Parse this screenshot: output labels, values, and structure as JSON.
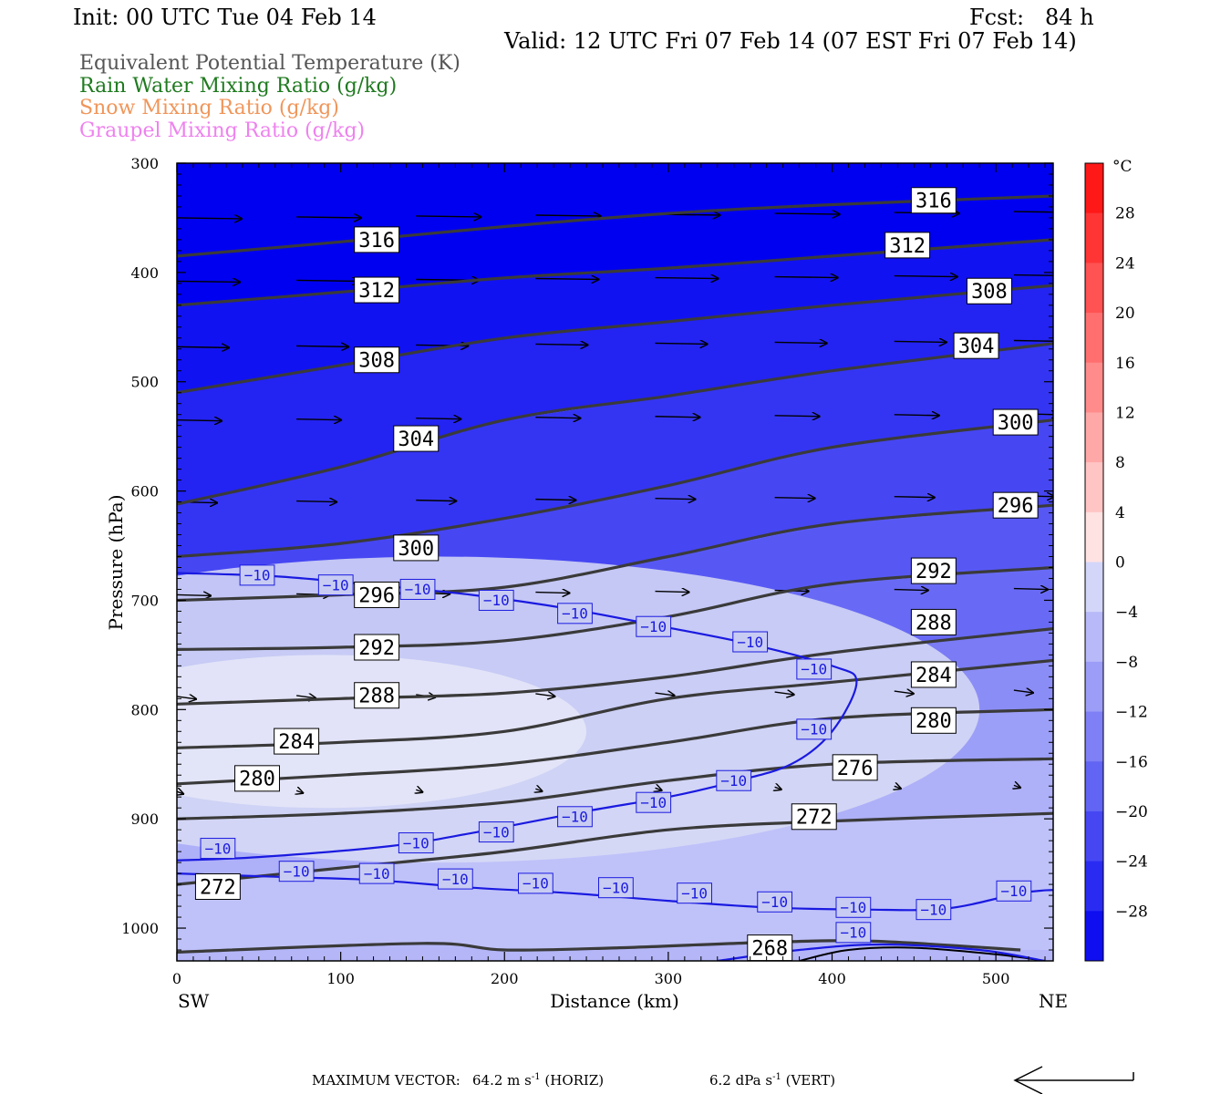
{
  "header": {
    "init": "Init: 00 UTC Tue 04 Feb 14",
    "fcst": "Fcst:   84 h",
    "valid": "Valid: 12 UTC Fri 07 Feb 14 (07 EST Fri 07 Feb 14)"
  },
  "legend": [
    {
      "text": "Equivalent Potential Temperature (K)",
      "color": "#555555"
    },
    {
      "text": "Rain Water Mixing Ratio (g/kg)",
      "color": "#1f7a1f"
    },
    {
      "text": "Snow Mixing Ratio (g/kg)",
      "color": "#f0965a"
    },
    {
      "text": "Graupel Mixing Ratio (g/kg)",
      "color": "#ee82ee"
    }
  ],
  "chart_data": {
    "type": "cross-section",
    "xlabel": "Distance (km)",
    "ylabel": "Pressure (hPa)",
    "x_ticks": [
      "0",
      "100",
      "200",
      "300",
      "400",
      "500"
    ],
    "y_ticks": [
      "300",
      "400",
      "500",
      "600",
      "700",
      "800",
      "900",
      "1000"
    ],
    "xlim": [
      0,
      535
    ],
    "ylim": [
      1030,
      300
    ],
    "x_end_labels": {
      "left": "SW",
      "right": "NE"
    },
    "colorbar": {
      "unit": "°C",
      "labels": [
        "28",
        "24",
        "20",
        "16",
        "12",
        "8",
        "4",
        "0",
        "−4",
        "−8",
        "−12",
        "−16",
        "−20",
        "−24",
        "−28"
      ],
      "range": [
        -32,
        32
      ]
    },
    "theta_e_contours": [
      {
        "label": "316",
        "points": [
          [
            0,
            385
          ],
          [
            100,
            372
          ],
          [
            200,
            358
          ],
          [
            300,
            346
          ],
          [
            400,
            338
          ],
          [
            535,
            330
          ]
        ]
      },
      {
        "label": "312",
        "points": [
          [
            0,
            430
          ],
          [
            100,
            418
          ],
          [
            200,
            405
          ],
          [
            300,
            396
          ],
          [
            400,
            385
          ],
          [
            535,
            370
          ]
        ]
      },
      {
        "label": "308",
        "points": [
          [
            0,
            510
          ],
          [
            100,
            485
          ],
          [
            200,
            460
          ],
          [
            300,
            445
          ],
          [
            400,
            430
          ],
          [
            535,
            412
          ]
        ]
      },
      {
        "label": "304",
        "points": [
          [
            0,
            612
          ],
          [
            100,
            578
          ],
          [
            200,
            535
          ],
          [
            300,
            513
          ],
          [
            400,
            490
          ],
          [
            535,
            465
          ]
        ]
      },
      {
        "label": "300",
        "points": [
          [
            0,
            660
          ],
          [
            100,
            648
          ],
          [
            200,
            625
          ],
          [
            300,
            595
          ],
          [
            400,
            560
          ],
          [
            535,
            535
          ]
        ]
      },
      {
        "label": "296",
        "points": [
          [
            0,
            700
          ],
          [
            100,
            695
          ],
          [
            200,
            688
          ],
          [
            300,
            660
          ],
          [
            400,
            630
          ],
          [
            535,
            613
          ]
        ]
      },
      {
        "label": "292",
        "points": [
          [
            0,
            745
          ],
          [
            100,
            743
          ],
          [
            200,
            737
          ],
          [
            300,
            715
          ],
          [
            400,
            685
          ],
          [
            535,
            670
          ]
        ]
      },
      {
        "label": "288",
        "points": [
          [
            0,
            795
          ],
          [
            100,
            790
          ],
          [
            200,
            785
          ],
          [
            300,
            770
          ],
          [
            400,
            748
          ],
          [
            535,
            726
          ]
        ]
      },
      {
        "label": "284",
        "points": [
          [
            0,
            835
          ],
          [
            100,
            830
          ],
          [
            200,
            820
          ],
          [
            300,
            790
          ],
          [
            400,
            775
          ],
          [
            535,
            755
          ]
        ]
      },
      {
        "label": "280",
        "points": [
          [
            0,
            868
          ],
          [
            100,
            860
          ],
          [
            200,
            850
          ],
          [
            300,
            830
          ],
          [
            400,
            808
          ],
          [
            535,
            800
          ]
        ]
      },
      {
        "label": "276",
        "points": [
          [
            0,
            900
          ],
          [
            100,
            895
          ],
          [
            200,
            885
          ],
          [
            300,
            865
          ],
          [
            400,
            850
          ],
          [
            535,
            845
          ]
        ]
      },
      {
        "label": "272",
        "points": [
          [
            0,
            960
          ],
          [
            100,
            945
          ],
          [
            200,
            930
          ],
          [
            300,
            910
          ],
          [
            400,
            902
          ],
          [
            535,
            895
          ]
        ]
      },
      {
        "label": "268",
        "points": [
          [
            0,
            1022
          ],
          [
            150,
            1014
          ],
          [
            200,
            1020
          ],
          [
            270,
            1018
          ],
          [
            360,
            1013
          ],
          [
            425,
            1012
          ],
          [
            515,
            1020
          ]
        ]
      }
    ],
    "isotherm_minus10": {
      "label": "−10",
      "upper": [
        [
          0,
          675
        ],
        [
          60,
          678
        ],
        [
          120,
          686
        ],
        [
          180,
          695
        ],
        [
          240,
          708
        ],
        [
          300,
          725
        ],
        [
          350,
          740
        ],
        [
          400,
          760
        ],
        [
          415,
          775
        ],
        [
          400,
          820
        ],
        [
          375,
          850
        ],
        [
          340,
          866
        ],
        [
          300,
          880
        ],
        [
          250,
          893
        ],
        [
          180,
          913
        ],
        [
          130,
          925
        ],
        [
          50,
          935
        ],
        [
          0,
          938
        ]
      ],
      "lower": [
        [
          0,
          950
        ],
        [
          60,
          953
        ],
        [
          120,
          956
        ],
        [
          180,
          963
        ],
        [
          240,
          968
        ],
        [
          300,
          975
        ],
        [
          360,
          981
        ],
        [
          420,
          983
        ],
        [
          470,
          982
        ],
        [
          515,
          968
        ],
        [
          535,
          965
        ]
      ]
    },
    "footer": {
      "max_vector_label": "MAXIMUM VECTOR:",
      "horiz_value": "64.2 m s",
      "horiz_exp": "-1",
      "horiz_tag": "(HORIZ)",
      "vert_value": "6.2 dPa s",
      "vert_exp": "-1",
      "vert_tag": "(VERT)"
    }
  }
}
